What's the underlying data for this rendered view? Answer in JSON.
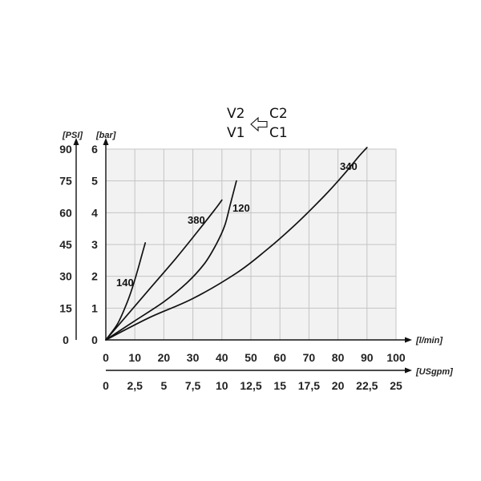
{
  "flow_direction": {
    "top_left": "V2",
    "bottom_left": "V1",
    "top_right": "C2",
    "bottom_right": "C1",
    "arrow_icon": "arrow-left-outline-icon"
  },
  "chart_data": {
    "type": "line",
    "title": "",
    "xlabel": "[l/min]",
    "x2label": "[USgpm]",
    "ylabel": "[bar]",
    "y2label": "[PSI]",
    "xlim": [
      0,
      100
    ],
    "ylim": [
      0,
      6
    ],
    "x_ticks": [
      "0",
      "10",
      "20",
      "30",
      "40",
      "50",
      "60",
      "70",
      "80",
      "90",
      "100"
    ],
    "x2_ticks": [
      "0",
      "2,5",
      "5",
      "7,5",
      "10",
      "12,5",
      "15",
      "17,5",
      "20",
      "22,5",
      "25"
    ],
    "y_ticks": [
      "0",
      "1",
      "2",
      "3",
      "4",
      "5",
      "6"
    ],
    "y2_ticks": [
      "0",
      "15",
      "30",
      "45",
      "60",
      "75",
      "90"
    ],
    "grid": true,
    "background": "#f2f2f2",
    "series": [
      {
        "name": "140",
        "x": [
          0,
          4,
          7,
          9,
          11,
          12.5,
          13.6
        ],
        "y": [
          0,
          0.5,
          1.1,
          1.6,
          2.2,
          2.7,
          3.05
        ]
      },
      {
        "name": "380",
        "x": [
          0,
          8,
          16,
          24,
          32,
          38,
          40
        ],
        "y": [
          0,
          0.85,
          1.7,
          2.55,
          3.45,
          4.15,
          4.4
        ]
      },
      {
        "name": "120",
        "x": [
          0,
          10,
          20,
          28,
          34,
          38,
          41,
          43,
          45
        ],
        "y": [
          0,
          0.6,
          1.2,
          1.8,
          2.4,
          3.0,
          3.6,
          4.3,
          5.0
        ]
      },
      {
        "name": "340",
        "x": [
          0,
          15,
          30,
          45,
          55,
          65,
          75,
          82,
          87,
          90
        ],
        "y": [
          0,
          0.7,
          1.3,
          2.1,
          2.8,
          3.6,
          4.5,
          5.2,
          5.75,
          6.05
        ]
      }
    ]
  }
}
